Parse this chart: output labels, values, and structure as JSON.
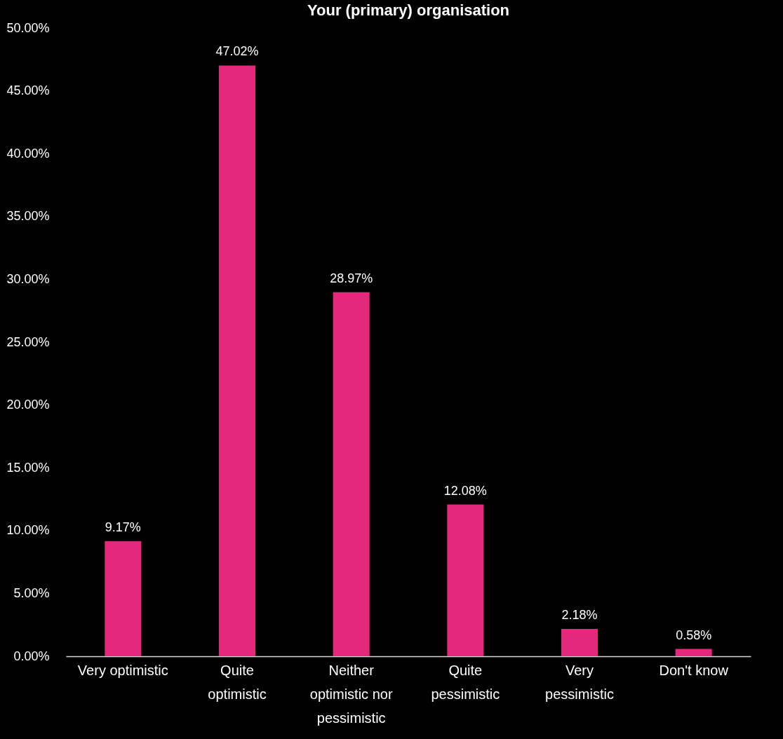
{
  "chart_data": {
    "type": "bar",
    "title": "Your (primary) organisation",
    "categories": [
      "Very optimistic",
      "Quite optimistic",
      "Neither optimistic nor pessimistic",
      "Quite pessimistic",
      "Very pessimistic",
      "Don't know"
    ],
    "values": [
      9.17,
      47.02,
      28.97,
      12.08,
      2.18,
      0.58
    ],
    "value_labels": [
      "9.17%",
      "47.02%",
      "28.97%",
      "12.08%",
      "2.18%",
      "0.58%"
    ],
    "color": "#e4287c",
    "ylim": [
      0,
      50
    ],
    "yticks": [
      {
        "value": 0,
        "label": "0.00%"
      },
      {
        "value": 5,
        "label": "5.00%"
      },
      {
        "value": 10,
        "label": "10.00%"
      },
      {
        "value": 15,
        "label": "15.00%"
      },
      {
        "value": 20,
        "label": "20.00%"
      },
      {
        "value": 25,
        "label": "25.00%"
      },
      {
        "value": 30,
        "label": "30.00%"
      },
      {
        "value": 35,
        "label": "35.00%"
      },
      {
        "value": 40,
        "label": "40.00%"
      },
      {
        "value": 45,
        "label": "45.00%"
      },
      {
        "value": 50,
        "label": "50.00%"
      }
    ],
    "grid": false
  }
}
